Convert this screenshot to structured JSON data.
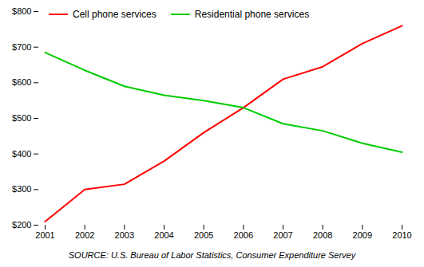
{
  "chart_data": {
    "type": "line",
    "caption": "SOURCE: U.S. Bureau of Labor Statistics, Consumer Expenditure Servey",
    "x": [
      2001,
      2002,
      2003,
      2004,
      2005,
      2006,
      2007,
      2008,
      2009,
      2010
    ],
    "series": [
      {
        "name": "Cell phone services",
        "color": "#ff0000",
        "values": [
          210,
          300,
          315,
          380,
          460,
          530,
          610,
          645,
          710,
          760
        ]
      },
      {
        "name": "Residential phone services",
        "color": "#00cc00",
        "values": [
          685,
          635,
          590,
          565,
          550,
          530,
          485,
          465,
          430,
          405
        ]
      }
    ],
    "xlim": [
      2001,
      2010
    ],
    "xticks": [
      2001,
      2002,
      2003,
      2004,
      2005,
      2006,
      2007,
      2008,
      2009,
      2010
    ],
    "ylim": [
      200,
      800
    ],
    "yticks": [
      {
        "value": 200,
        "label": "$200"
      },
      {
        "value": 300,
        "label": "$300"
      },
      {
        "value": 400,
        "label": "$400"
      },
      {
        "value": 500,
        "label": "$500"
      },
      {
        "value": 600,
        "label": "$600"
      },
      {
        "value": 700,
        "label": "$700"
      },
      {
        "value": 800,
        "label": "$800"
      }
    ],
    "grid": false,
    "legend": "upper left"
  }
}
